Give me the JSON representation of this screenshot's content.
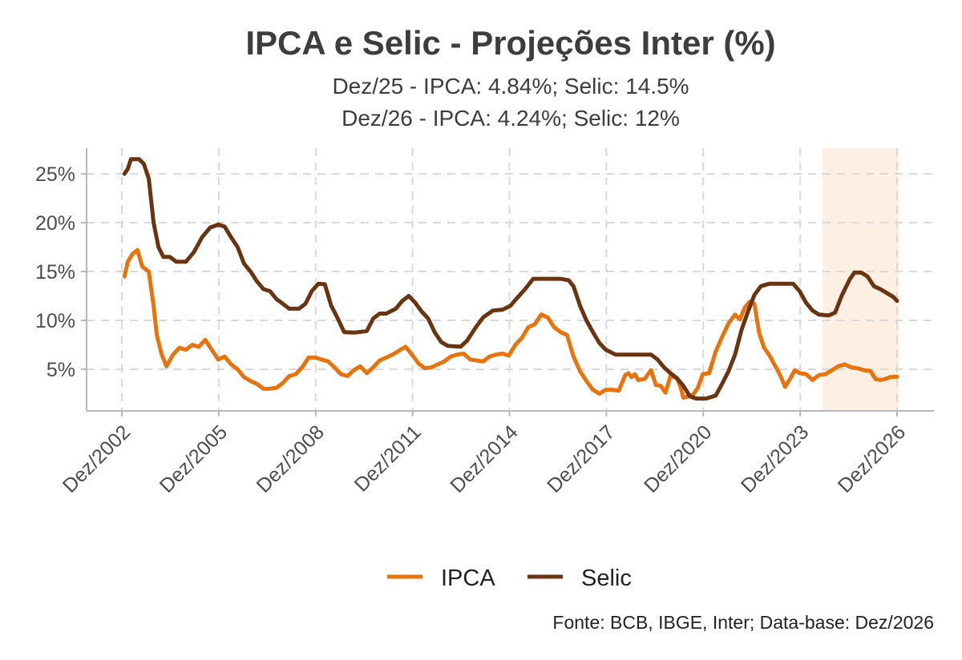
{
  "chart_data": {
    "type": "line",
    "title": "IPCA e Selic - Projeções Inter (%)",
    "subtitle_lines": [
      "Dez/25 - IPCA: 4.84%; Selic: 14.5%",
      "Dez/26 - IPCA: 4.24%; Selic: 12%"
    ],
    "caption": "Fonte: BCB, IBGE, Inter; Data-base: Dez/2026",
    "x_axis_unit": "year",
    "xlim": [
      2002.9,
      2026.9
    ],
    "ylim": [
      1,
      28
    ],
    "yticks": [
      5,
      10,
      15,
      20,
      25
    ],
    "ytick_labels": [
      "5%",
      "10%",
      "15%",
      "20%",
      "25%"
    ],
    "xticks": [
      2002.917,
      2005.917,
      2008.917,
      2011.917,
      2014.917,
      2017.917,
      2020.917,
      2023.917,
      2026.917
    ],
    "xtick_labels": [
      "Dez/2002",
      "Dez/2005",
      "Dez/2008",
      "Dez/2011",
      "Dez/2014",
      "Dez/2017",
      "Dez/2020",
      "Dez/2023",
      "Dez/2026"
    ],
    "grid": true,
    "legend_position": "bottom",
    "projection_band": {
      "x0": 2024.6,
      "x1": 2026.917,
      "color": "#fdf0e3"
    },
    "series": [
      {
        "name": "IPCA",
        "color": "#e8730c",
        "points": [
          [
            2003.0,
            14.5
          ],
          [
            2003.1,
            16.0
          ],
          [
            2003.25,
            16.8
          ],
          [
            2003.4,
            17.2
          ],
          [
            2003.55,
            15.5
          ],
          [
            2003.75,
            15.0
          ],
          [
            2003.9,
            11.5
          ],
          [
            2004.0,
            8.5
          ],
          [
            2004.15,
            6.5
          ],
          [
            2004.3,
            5.3
          ],
          [
            2004.5,
            6.5
          ],
          [
            2004.7,
            7.2
          ],
          [
            2004.9,
            7.0
          ],
          [
            2005.1,
            7.5
          ],
          [
            2005.3,
            7.3
          ],
          [
            2005.5,
            8.0
          ],
          [
            2005.7,
            7.0
          ],
          [
            2005.9,
            6.0
          ],
          [
            2006.1,
            6.3
          ],
          [
            2006.3,
            5.5
          ],
          [
            2006.5,
            5.0
          ],
          [
            2006.7,
            4.2
          ],
          [
            2006.9,
            3.8
          ],
          [
            2007.1,
            3.5
          ],
          [
            2007.3,
            3.0
          ],
          [
            2007.5,
            3.0
          ],
          [
            2007.7,
            3.1
          ],
          [
            2007.9,
            3.6
          ],
          [
            2008.1,
            4.3
          ],
          [
            2008.3,
            4.5
          ],
          [
            2008.5,
            5.2
          ],
          [
            2008.7,
            6.2
          ],
          [
            2008.9,
            6.2
          ],
          [
            2009.1,
            6.0
          ],
          [
            2009.3,
            5.8
          ],
          [
            2009.5,
            5.2
          ],
          [
            2009.7,
            4.5
          ],
          [
            2009.9,
            4.3
          ],
          [
            2010.1,
            4.9
          ],
          [
            2010.3,
            5.3
          ],
          [
            2010.5,
            4.6
          ],
          [
            2010.7,
            5.2
          ],
          [
            2010.9,
            5.9
          ],
          [
            2011.1,
            6.2
          ],
          [
            2011.3,
            6.5
          ],
          [
            2011.5,
            6.9
          ],
          [
            2011.7,
            7.3
          ],
          [
            2011.9,
            6.5
          ],
          [
            2012.1,
            5.6
          ],
          [
            2012.3,
            5.1
          ],
          [
            2012.5,
            5.2
          ],
          [
            2012.7,
            5.5
          ],
          [
            2012.9,
            5.8
          ],
          [
            2013.1,
            6.3
          ],
          [
            2013.3,
            6.5
          ],
          [
            2013.5,
            6.6
          ],
          [
            2013.7,
            6.0
          ],
          [
            2013.9,
            5.9
          ],
          [
            2014.1,
            5.8
          ],
          [
            2014.3,
            6.3
          ],
          [
            2014.5,
            6.5
          ],
          [
            2014.7,
            6.6
          ],
          [
            2014.9,
            6.4
          ],
          [
            2015.1,
            7.5
          ],
          [
            2015.3,
            8.2
          ],
          [
            2015.5,
            9.3
          ],
          [
            2015.7,
            9.6
          ],
          [
            2015.9,
            10.6
          ],
          [
            2016.1,
            10.3
          ],
          [
            2016.3,
            9.3
          ],
          [
            2016.5,
            8.8
          ],
          [
            2016.7,
            8.5
          ],
          [
            2016.9,
            6.3
          ],
          [
            2017.1,
            4.8
          ],
          [
            2017.3,
            3.8
          ],
          [
            2017.5,
            2.9
          ],
          [
            2017.7,
            2.5
          ],
          [
            2017.9,
            2.9
          ],
          [
            2018.1,
            2.9
          ],
          [
            2018.3,
            2.8
          ],
          [
            2018.5,
            4.4
          ],
          [
            2018.6,
            4.6
          ],
          [
            2018.7,
            4.2
          ],
          [
            2018.8,
            4.5
          ],
          [
            2018.9,
            3.9
          ],
          [
            2019.1,
            4.0
          ],
          [
            2019.3,
            4.9
          ],
          [
            2019.45,
            3.4
          ],
          [
            2019.6,
            3.3
          ],
          [
            2019.75,
            2.6
          ],
          [
            2019.9,
            4.3
          ],
          [
            2020.1,
            4.1
          ],
          [
            2020.2,
            3.3
          ],
          [
            2020.3,
            2.1
          ],
          [
            2020.45,
            2.2
          ],
          [
            2020.6,
            2.4
          ],
          [
            2020.75,
            3.1
          ],
          [
            2020.9,
            4.5
          ],
          [
            2021.1,
            4.6
          ],
          [
            2021.3,
            6.8
          ],
          [
            2021.5,
            8.3
          ],
          [
            2021.7,
            9.7
          ],
          [
            2021.9,
            10.6
          ],
          [
            2022.05,
            10.1
          ],
          [
            2022.2,
            11.3
          ],
          [
            2022.35,
            11.9
          ],
          [
            2022.5,
            11.7
          ],
          [
            2022.65,
            8.7
          ],
          [
            2022.8,
            7.2
          ],
          [
            2022.95,
            6.5
          ],
          [
            2023.1,
            5.6
          ],
          [
            2023.25,
            4.7
          ],
          [
            2023.35,
            4.0
          ],
          [
            2023.45,
            3.2
          ],
          [
            2023.6,
            4.0
          ],
          [
            2023.75,
            4.9
          ],
          [
            2023.9,
            4.6
          ],
          [
            2024.1,
            4.5
          ],
          [
            2024.3,
            3.9
          ],
          [
            2024.5,
            4.4
          ],
          [
            2024.7,
            4.5
          ],
          [
            2024.9,
            4.9
          ],
          [
            2025.1,
            5.3
          ],
          [
            2025.3,
            5.5
          ],
          [
            2025.5,
            5.2
          ],
          [
            2025.7,
            5.1
          ],
          [
            2025.9,
            4.9
          ],
          [
            2026.1,
            4.8
          ],
          [
            2026.25,
            4.0
          ],
          [
            2026.4,
            3.9
          ],
          [
            2026.55,
            4.0
          ],
          [
            2026.7,
            4.2
          ],
          [
            2026.917,
            4.24
          ]
        ]
      },
      {
        "name": "Selic",
        "color": "#6b3410",
        "points": [
          [
            2003.0,
            25.0
          ],
          [
            2003.1,
            25.5
          ],
          [
            2003.2,
            26.5
          ],
          [
            2003.45,
            26.5
          ],
          [
            2003.6,
            26.0
          ],
          [
            2003.75,
            24.5
          ],
          [
            2003.9,
            20.0
          ],
          [
            2004.05,
            17.5
          ],
          [
            2004.2,
            16.5
          ],
          [
            2004.4,
            16.5
          ],
          [
            2004.6,
            16.0
          ],
          [
            2004.9,
            16.0
          ],
          [
            2005.15,
            17.0
          ],
          [
            2005.4,
            18.5
          ],
          [
            2005.65,
            19.5
          ],
          [
            2005.9,
            19.8
          ],
          [
            2006.1,
            19.6
          ],
          [
            2006.3,
            18.5
          ],
          [
            2006.5,
            17.5
          ],
          [
            2006.7,
            15.8
          ],
          [
            2006.9,
            15.0
          ],
          [
            2007.1,
            14.0
          ],
          [
            2007.3,
            13.2
          ],
          [
            2007.5,
            13.0
          ],
          [
            2007.7,
            12.2
          ],
          [
            2007.9,
            11.7
          ],
          [
            2008.1,
            11.2
          ],
          [
            2008.4,
            11.2
          ],
          [
            2008.6,
            11.7
          ],
          [
            2008.8,
            13.0
          ],
          [
            2009.0,
            13.75
          ],
          [
            2009.2,
            13.7
          ],
          [
            2009.4,
            11.5
          ],
          [
            2009.6,
            10.2
          ],
          [
            2009.8,
            8.8
          ],
          [
            2010.1,
            8.75
          ],
          [
            2010.5,
            8.9
          ],
          [
            2010.7,
            10.2
          ],
          [
            2010.9,
            10.7
          ],
          [
            2011.1,
            10.7
          ],
          [
            2011.4,
            11.2
          ],
          [
            2011.6,
            12.0
          ],
          [
            2011.8,
            12.5
          ],
          [
            2012.0,
            11.8
          ],
          [
            2012.2,
            10.9
          ],
          [
            2012.4,
            10.2
          ],
          [
            2012.6,
            8.8
          ],
          [
            2012.8,
            7.8
          ],
          [
            2013.0,
            7.4
          ],
          [
            2013.4,
            7.3
          ],
          [
            2013.6,
            7.9
          ],
          [
            2013.9,
            9.4
          ],
          [
            2014.1,
            10.3
          ],
          [
            2014.4,
            11.0
          ],
          [
            2014.7,
            11.1
          ],
          [
            2014.95,
            11.5
          ],
          [
            2015.1,
            12.1
          ],
          [
            2015.4,
            13.2
          ],
          [
            2015.65,
            14.25
          ],
          [
            2016.0,
            14.25
          ],
          [
            2016.5,
            14.25
          ],
          [
            2016.75,
            14.1
          ],
          [
            2016.9,
            13.5
          ],
          [
            2017.1,
            11.5
          ],
          [
            2017.3,
            10.0
          ],
          [
            2017.5,
            8.8
          ],
          [
            2017.7,
            7.7
          ],
          [
            2017.9,
            7.0
          ],
          [
            2018.2,
            6.5
          ],
          [
            2018.6,
            6.5
          ],
          [
            2019.0,
            6.5
          ],
          [
            2019.3,
            6.5
          ],
          [
            2019.5,
            6.0
          ],
          [
            2019.7,
            5.2
          ],
          [
            2019.9,
            4.6
          ],
          [
            2020.1,
            4.1
          ],
          [
            2020.3,
            3.3
          ],
          [
            2020.5,
            2.25
          ],
          [
            2020.7,
            2.0
          ],
          [
            2021.0,
            2.0
          ],
          [
            2021.3,
            2.3
          ],
          [
            2021.5,
            3.5
          ],
          [
            2021.7,
            4.8
          ],
          [
            2021.9,
            6.5
          ],
          [
            2022.1,
            9.0
          ],
          [
            2022.3,
            10.9
          ],
          [
            2022.5,
            12.6
          ],
          [
            2022.7,
            13.5
          ],
          [
            2022.95,
            13.75
          ],
          [
            2023.4,
            13.75
          ],
          [
            2023.7,
            13.75
          ],
          [
            2023.9,
            13.0
          ],
          [
            2024.1,
            11.8
          ],
          [
            2024.3,
            11.0
          ],
          [
            2024.5,
            10.6
          ],
          [
            2024.8,
            10.5
          ],
          [
            2025.0,
            10.8
          ],
          [
            2025.2,
            12.5
          ],
          [
            2025.45,
            14.2
          ],
          [
            2025.6,
            14.9
          ],
          [
            2025.8,
            14.9
          ],
          [
            2026.0,
            14.5
          ],
          [
            2026.2,
            13.5
          ],
          [
            2026.4,
            13.2
          ],
          [
            2026.6,
            12.8
          ],
          [
            2026.8,
            12.4
          ],
          [
            2026.917,
            12.0
          ]
        ]
      }
    ]
  }
}
